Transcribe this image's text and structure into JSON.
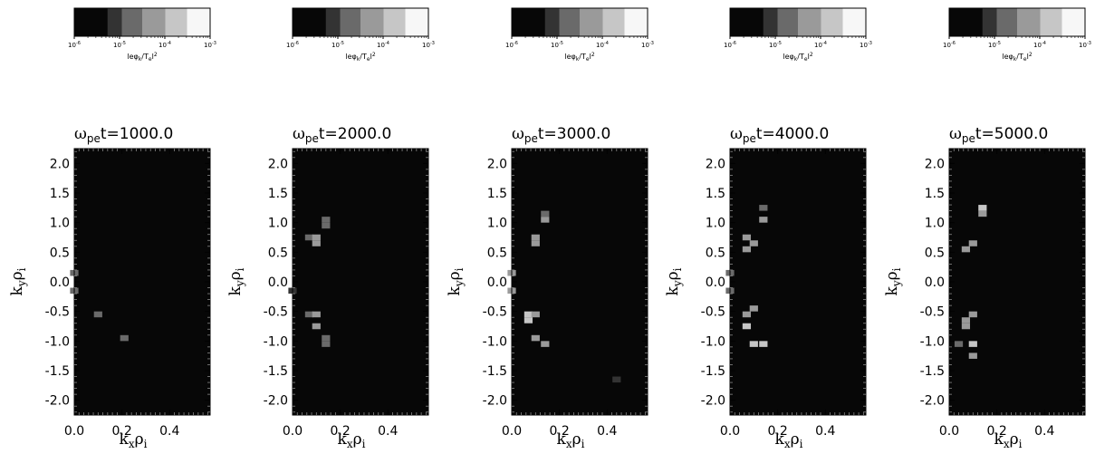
{
  "colorbar": {
    "tick_labels": [
      {
        "base": "10",
        "exp": "-6"
      },
      {
        "base": "10",
        "exp": "-5"
      },
      {
        "base": "10",
        "exp": "-4"
      },
      {
        "base": "10",
        "exp": "-3"
      }
    ],
    "label": {
      "open": "le",
      "phi": "φ",
      "k": "k",
      "slash": "/T",
      "e": "e",
      "close": "l",
      "pow": "2"
    },
    "levels": [
      "#070707",
      "#333333",
      "#6a6a6a",
      "#9a9a9a",
      "#c6c6c6",
      "#f7f7f7"
    ]
  },
  "axes_text": {
    "title_prefix": "ω",
    "title_sub": "pe",
    "title_suffix": "t=",
    "xlabel": {
      "k": "k",
      "k_sub": "x",
      "rho": "ρ",
      "rho_sub": "i"
    },
    "ylabel": {
      "k": "k",
      "k_sub": "y",
      "rho": "ρ",
      "rho_sub": "i"
    }
  },
  "chart_data": [
    {
      "type": "heatmap",
      "title_value": "1000.0",
      "xlim": [
        0.0,
        0.57
      ],
      "ylim": [
        -2.25,
        2.25
      ],
      "xticks": [
        "0.0",
        "0.2",
        "0.4"
      ],
      "yticks": [
        "2.0",
        "1.5",
        "1.0",
        "0.5",
        "0.0",
        "-0.5",
        "-1.0",
        "-1.5",
        "-2.0"
      ],
      "dx": 0.035,
      "dy": 0.1,
      "cells": [
        [
          0.0,
          0.15,
          2
        ],
        [
          0.0,
          -0.15,
          2
        ],
        [
          0.1,
          -0.55,
          2
        ],
        [
          0.21,
          -0.95,
          2
        ]
      ]
    },
    {
      "type": "heatmap",
      "title_value": "2000.0",
      "xlim": [
        0.0,
        0.57
      ],
      "ylim": [
        -2.25,
        2.25
      ],
      "xticks": [
        "0.0",
        "0.2",
        "0.4"
      ],
      "yticks": [
        "2.0",
        "1.5",
        "1.0",
        "0.5",
        "0.0",
        "-0.5",
        "-1.0",
        "-1.5",
        "-2.0"
      ],
      "dx": 0.035,
      "dy": 0.1,
      "cells": [
        [
          0.0,
          -0.15,
          1
        ],
        [
          0.07,
          0.75,
          2
        ],
        [
          0.1,
          0.75,
          3
        ],
        [
          0.1,
          0.65,
          3
        ],
        [
          0.14,
          1.05,
          2
        ],
        [
          0.14,
          0.95,
          2
        ],
        [
          0.07,
          -0.55,
          2
        ],
        [
          0.1,
          -0.55,
          3
        ],
        [
          0.1,
          -0.75,
          3
        ],
        [
          0.14,
          -0.95,
          2
        ],
        [
          0.14,
          -1.05,
          2
        ]
      ]
    },
    {
      "type": "heatmap",
      "title_value": "3000.0",
      "xlim": [
        0.0,
        0.57
      ],
      "ylim": [
        -2.25,
        2.25
      ],
      "xticks": [
        "0.0",
        "0.2",
        "0.4"
      ],
      "yticks": [
        "2.0",
        "1.5",
        "1.0",
        "0.5",
        "0.0",
        "-0.5",
        "-1.0",
        "-1.5",
        "-2.0"
      ],
      "dx": 0.035,
      "dy": 0.1,
      "cells": [
        [
          0.0,
          0.15,
          3
        ],
        [
          0.0,
          -0.15,
          3
        ],
        [
          0.07,
          -0.55,
          4
        ],
        [
          0.07,
          -0.65,
          4
        ],
        [
          0.1,
          -0.55,
          3
        ],
        [
          0.1,
          0.75,
          3
        ],
        [
          0.1,
          0.65,
          3
        ],
        [
          0.14,
          1.05,
          3
        ],
        [
          0.14,
          1.15,
          2
        ],
        [
          0.1,
          -0.95,
          3
        ],
        [
          0.14,
          -1.05,
          3
        ],
        [
          0.44,
          -1.65,
          1
        ]
      ]
    },
    {
      "type": "heatmap",
      "title_value": "4000.0",
      "xlim": [
        0.0,
        0.57
      ],
      "ylim": [
        -2.25,
        2.25
      ],
      "xticks": [
        "0.0",
        "0.2",
        "0.4"
      ],
      "yticks": [
        "2.0",
        "1.5",
        "1.0",
        "0.5",
        "0.0",
        "-0.5",
        "-1.0",
        "-1.5",
        "-2.0"
      ],
      "dx": 0.035,
      "dy": 0.1,
      "cells": [
        [
          0.0,
          0.15,
          2
        ],
        [
          0.0,
          -0.15,
          2
        ],
        [
          0.07,
          0.75,
          3
        ],
        [
          0.07,
          0.55,
          3
        ],
        [
          0.1,
          0.65,
          3
        ],
        [
          0.14,
          1.05,
          3
        ],
        [
          0.14,
          1.25,
          2
        ],
        [
          0.07,
          -0.55,
          3
        ],
        [
          0.07,
          -0.75,
          4
        ],
        [
          0.1,
          -0.45,
          3
        ],
        [
          0.1,
          -1.05,
          4
        ],
        [
          0.14,
          -1.05,
          4
        ]
      ]
    },
    {
      "type": "heatmap",
      "title_value": "5000.0",
      "xlim": [
        0.0,
        0.57
      ],
      "ylim": [
        -2.25,
        2.25
      ],
      "xticks": [
        "0.0",
        "0.2",
        "0.4"
      ],
      "yticks": [
        "2.0",
        "1.5",
        "1.0",
        "0.5",
        "0.0",
        "-0.5",
        "-1.0",
        "-1.5",
        "-2.0"
      ],
      "dx": 0.035,
      "dy": 0.1,
      "cells": [
        [
          0.07,
          0.55,
          3
        ],
        [
          0.1,
          0.65,
          3
        ],
        [
          0.14,
          1.25,
          4
        ],
        [
          0.14,
          1.15,
          3
        ],
        [
          0.07,
          -0.75,
          3
        ],
        [
          0.07,
          -0.65,
          3
        ],
        [
          0.1,
          -0.55,
          3
        ],
        [
          0.1,
          -1.05,
          4
        ],
        [
          0.1,
          -1.25,
          3
        ],
        [
          0.04,
          -1.05,
          2
        ]
      ]
    }
  ]
}
